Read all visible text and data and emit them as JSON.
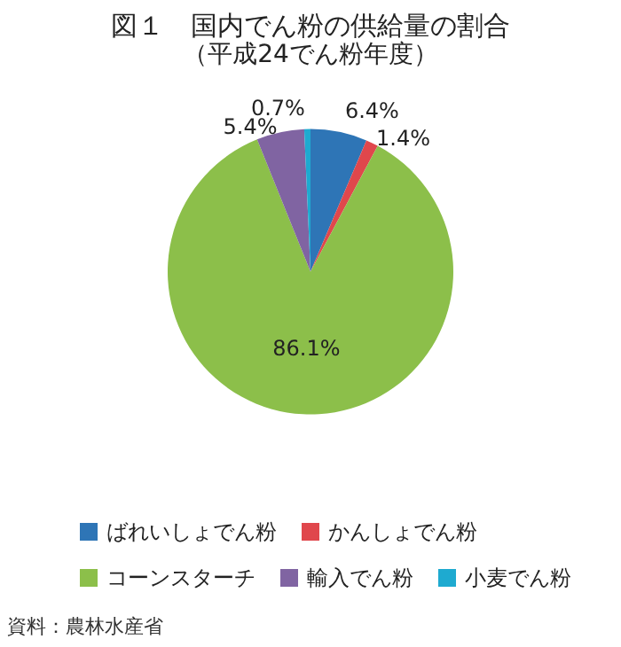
{
  "chart_data": {
    "type": "pie",
    "title": "図１　国内でん粉の供給量の割合",
    "subtitle": "（平成24でん粉年度）",
    "categories": [
      "ばれいしょでん粉",
      "かんしょでん粉",
      "コーンスターチ",
      "輸入でん粉",
      "小麦でん粉"
    ],
    "values": [
      6.4,
      1.4,
      86.1,
      5.4,
      0.7
    ],
    "value_labels": [
      "6.4%",
      "1.4%",
      "86.1%",
      "5.4%",
      "0.7%"
    ],
    "colors": [
      "#2e75b6",
      "#e0474c",
      "#8cbf4a",
      "#8064a2",
      "#1eaad0"
    ],
    "legend": "bottom",
    "annotations": [
      "資料：農林水産省"
    ]
  }
}
